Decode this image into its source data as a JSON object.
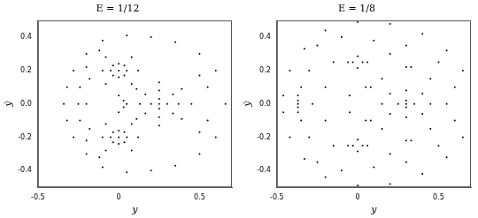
{
  "chart_data": [
    {
      "type": "scatter",
      "title": "E = 1/12",
      "x_label": "y",
      "y_label": "ẏ",
      "xlim": [
        -0.5,
        0.7
      ],
      "xticks": [
        -0.5,
        {
          "value": 0,
          "label": "0"
        },
        0.5
      ],
      "ylim": [
        -0.5,
        0.5
      ],
      "yticks": [
        -0.4,
        -0.2,
        {
          "value": 0,
          "label": "0.0"
        },
        0.2,
        0.4
      ],
      "grid": false,
      "series": [
        {
          "color": "#000000",
          "marker": "dot",
          "points": [
            [
              0.66,
              0
            ],
            [
              0.6,
              0.2
            ],
            [
              0.5,
              0.3
            ],
            [
              0.35,
              0.37
            ],
            [
              0.2,
              0.4
            ],
            [
              0.05,
              0.41
            ],
            [
              -0.1,
              0.38
            ],
            [
              -0.2,
              0.3
            ],
            [
              -0.28,
              0.2
            ],
            [
              -0.32,
              0.1
            ],
            [
              -0.34,
              0
            ],
            [
              -0.32,
              -0.1
            ],
            [
              -0.28,
              -0.2
            ],
            [
              -0.2,
              -0.3
            ],
            [
              -0.1,
              -0.38
            ],
            [
              0.05,
              -0.41
            ],
            [
              0.2,
              -0.4
            ],
            [
              0.35,
              -0.37
            ],
            [
              0.5,
              -0.3
            ],
            [
              0.6,
              -0.2
            ],
            [
              -0.12,
              0.32
            ],
            [
              -0.2,
              0.22
            ],
            [
              -0.24,
              0.1
            ],
            [
              -0.25,
              0
            ],
            [
              -0.24,
              -0.1
            ],
            [
              -0.2,
              -0.22
            ],
            [
              -0.12,
              -0.32
            ],
            [
              -0.18,
              0.15
            ],
            [
              -0.2,
              0
            ],
            [
              -0.18,
              -0.15
            ],
            [
              0.05,
              0.2
            ],
            [
              0.035,
              0.23
            ],
            [
              0,
              0.24
            ],
            [
              -0.035,
              0.23
            ],
            [
              -0.05,
              0.2
            ],
            [
              -0.035,
              0.17
            ],
            [
              0,
              0.16
            ],
            [
              0.035,
              0.17
            ],
            [
              0,
              0.2
            ],
            [
              0.05,
              -0.2
            ],
            [
              0.035,
              -0.23
            ],
            [
              0,
              -0.24
            ],
            [
              -0.035,
              -0.23
            ],
            [
              -0.05,
              -0.2
            ],
            [
              -0.035,
              -0.17
            ],
            [
              0,
              -0.16
            ],
            [
              0.035,
              -0.17
            ],
            [
              0,
              -0.2
            ],
            [
              0.45,
              0
            ],
            [
              0.39,
              0.09
            ],
            [
              0.25,
              0.13
            ],
            [
              0.11,
              0.09
            ],
            [
              0.05,
              0
            ],
            [
              0.11,
              -0.09
            ],
            [
              0.25,
              -0.13
            ],
            [
              0.39,
              -0.09
            ],
            [
              0.37,
              0
            ],
            [
              0.335,
              0.057
            ],
            [
              0.25,
              0.08
            ],
            [
              0.165,
              0.057
            ],
            [
              0.13,
              0
            ],
            [
              0.165,
              -0.057
            ],
            [
              0.25,
              -0.08
            ],
            [
              0.335,
              -0.057
            ],
            [
              0.3,
              0
            ],
            [
              0.25,
              0.03
            ],
            [
              0.2,
              0
            ],
            [
              0.25,
              -0.03
            ],
            [
              0.25,
              0
            ],
            [
              -0.08,
              0.28
            ],
            [
              0.08,
              0.28
            ],
            [
              0.12,
              0.2
            ],
            [
              0.08,
              0.12
            ],
            [
              -0.08,
              0.12
            ],
            [
              -0.1,
              0.2
            ],
            [
              -0.08,
              -0.28
            ],
            [
              0.08,
              -0.28
            ],
            [
              0.12,
              -0.2
            ],
            [
              0.08,
              -0.12
            ],
            [
              -0.08,
              -0.12
            ],
            [
              -0.1,
              -0.2
            ],
            [
              0,
              0.05
            ],
            [
              0.03,
              0.02
            ],
            [
              0,
              -0.05
            ],
            [
              0.03,
              -0.02
            ],
            [
              0.5,
              0.17
            ],
            [
              0.55,
              0.1
            ],
            [
              0.5,
              -0.17
            ],
            [
              0.55,
              -0.1
            ]
          ]
        }
      ]
    },
    {
      "type": "scatter",
      "title": "E = 1/8",
      "x_label": "y",
      "y_label": "ẏ",
      "xlim": [
        -0.5,
        0.7
      ],
      "xticks": [
        -0.5,
        {
          "value": 0,
          "label": "0"
        },
        0.5
      ],
      "ylim": [
        -0.5,
        0.5
      ],
      "yticks": [
        -0.4,
        -0.2,
        {
          "value": 0,
          "label": "0.0"
        },
        0.2,
        0.4
      ],
      "grid": false,
      "series": [
        {
          "color": "#000000",
          "marker": "dot",
          "points": [
            [
              0.7,
              0
            ],
            [
              0.65,
              0.2
            ],
            [
              0.55,
              0.32
            ],
            [
              0.4,
              0.42
            ],
            [
              0.2,
              0.48
            ],
            [
              0,
              0.49
            ],
            [
              -0.2,
              0.44
            ],
            [
              -0.33,
              0.33
            ],
            [
              -0.42,
              0.2
            ],
            [
              -0.46,
              0.05
            ],
            [
              -0.46,
              -0.05
            ],
            [
              -0.42,
              -0.2
            ],
            [
              -0.33,
              -0.33
            ],
            [
              -0.2,
              -0.44
            ],
            [
              0,
              -0.49
            ],
            [
              0.2,
              -0.48
            ],
            [
              0.4,
              -0.42
            ],
            [
              0.55,
              -0.32
            ],
            [
              0.65,
              -0.2
            ],
            [
              0.06,
              0.25
            ],
            [
              0,
              0.285
            ],
            [
              -0.06,
              0.25
            ],
            [
              0,
              0.215
            ],
            [
              0.03,
              0.25
            ],
            [
              -0.03,
              0.25
            ],
            [
              0.06,
              -0.25
            ],
            [
              0,
              -0.285
            ],
            [
              -0.06,
              -0.25
            ],
            [
              0,
              -0.215
            ],
            [
              0.03,
              -0.25
            ],
            [
              -0.03,
              -0.25
            ],
            [
              0.45,
              0
            ],
            [
              0.4,
              0.06
            ],
            [
              0.3,
              0.08
            ],
            [
              0.2,
              0.06
            ],
            [
              0.15,
              0
            ],
            [
              0.2,
              -0.06
            ],
            [
              0.3,
              -0.08
            ],
            [
              0.4,
              -0.06
            ],
            [
              0.35,
              0
            ],
            [
              0.3,
              0.02
            ],
            [
              0.25,
              0
            ],
            [
              0.3,
              -0.02
            ],
            [
              0.3,
              0
            ],
            [
              0.05,
              0.1
            ],
            [
              0.08,
              0.1
            ],
            [
              0.05,
              -0.1
            ],
            [
              0.08,
              -0.1
            ],
            [
              0.3,
              0.22
            ],
            [
              0.33,
              0.22
            ],
            [
              0.3,
              -0.22
            ],
            [
              0.33,
              -0.22
            ],
            [
              -0.05,
              0.05
            ],
            [
              -0.05,
              -0.05
            ],
            [
              -0.37,
              0.05
            ],
            [
              -0.37,
              0
            ],
            [
              -0.37,
              -0.05
            ],
            [
              -0.37,
              0.02
            ],
            [
              -0.37,
              -0.02
            ],
            [
              -0.3,
              0.2
            ],
            [
              -0.25,
              0.35
            ],
            [
              -0.1,
              0.4
            ],
            [
              0.1,
              0.38
            ],
            [
              0.3,
              0.35
            ],
            [
              0.5,
              0.25
            ],
            [
              0.6,
              0.1
            ],
            [
              0.6,
              -0.1
            ],
            [
              0.5,
              -0.25
            ],
            [
              0.3,
              -0.35
            ],
            [
              0.1,
              -0.38
            ],
            [
              -0.1,
              -0.4
            ],
            [
              -0.25,
              -0.35
            ],
            [
              -0.3,
              -0.2
            ],
            [
              -0.2,
              0.1
            ],
            [
              -0.2,
              -0.1
            ],
            [
              -0.15,
              0.25
            ],
            [
              -0.15,
              -0.25
            ],
            [
              0.15,
              0.15
            ],
            [
              0.15,
              -0.15
            ],
            [
              0.45,
              0.15
            ],
            [
              0.45,
              -0.15
            ],
            [
              -0.28,
              0
            ],
            [
              0.55,
              0
            ],
            [
              0.2,
              0.3
            ],
            [
              0.2,
              -0.3
            ],
            [
              -0.35,
              0.1
            ],
            [
              -0.35,
              -0.1
            ]
          ]
        }
      ]
    }
  ]
}
